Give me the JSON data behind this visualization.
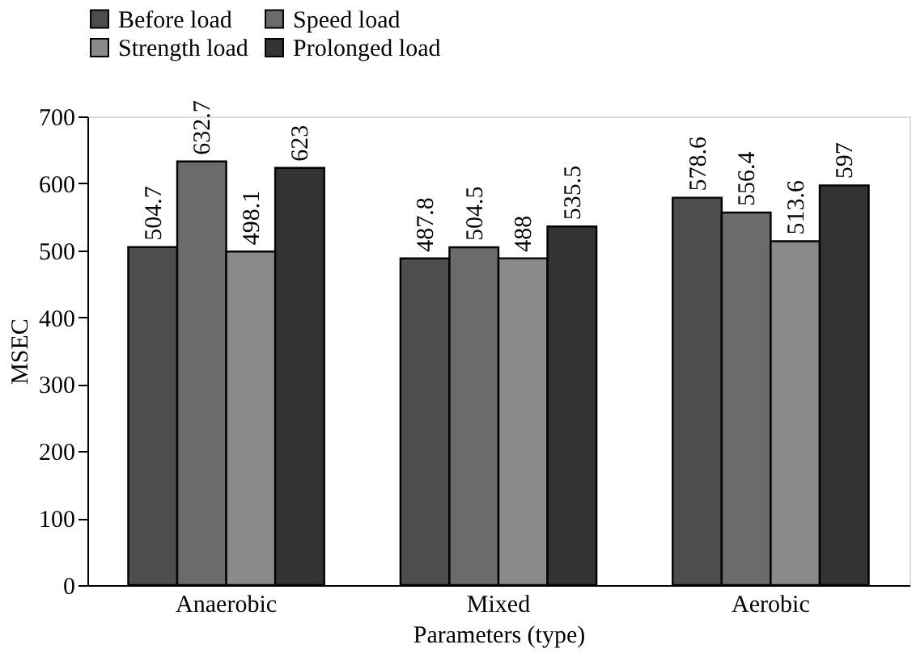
{
  "chart_data": {
    "type": "bar",
    "xlabel": "Parameters (type)",
    "ylabel": "MSEC",
    "categories": [
      "Anaerobic",
      "Mixed",
      "Aerobic"
    ],
    "series": [
      {
        "name": "Before load",
        "color": "#4d4d4d",
        "values": [
          504.7,
          487.8,
          578.6
        ]
      },
      {
        "name": "Speed load",
        "color": "#6b6b6b",
        "values": [
          632.7,
          504.5,
          556.4
        ]
      },
      {
        "name": "Strength load",
        "color": "#8a8a8a",
        "values": [
          498.1,
          488,
          513.6
        ]
      },
      {
        "name": "Prolonged load",
        "color": "#333333",
        "values": [
          623,
          535.5,
          597
        ]
      }
    ],
    "ylim": [
      0,
      700
    ],
    "yticks": [
      0,
      100,
      200,
      300,
      400,
      500,
      600,
      700
    ],
    "grid": false,
    "legend": "top",
    "data_labels": true
  }
}
